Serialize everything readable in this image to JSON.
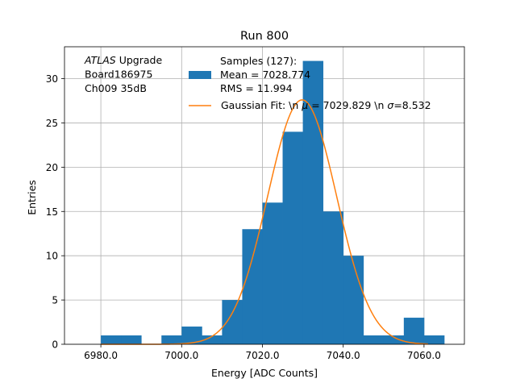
{
  "chart_data": {
    "type": "bar",
    "title": "Run 800",
    "xlabel": "Energy [ADC Counts]",
    "ylabel": "Entries",
    "xlim": [
      6971,
      7070
    ],
    "ylim": [
      0,
      33.6
    ],
    "grid": true,
    "x_ticks": [
      6980,
      7000,
      7020,
      7040,
      7060
    ],
    "x_tick_labels": [
      "6980.0",
      "7000.0",
      "7020.0",
      "7040.0",
      "7060.0"
    ],
    "y_ticks": [
      0,
      5,
      10,
      15,
      20,
      25,
      30
    ],
    "y_tick_labels": [
      "0",
      "5",
      "10",
      "15",
      "20",
      "25",
      "30"
    ],
    "histogram": {
      "name": "Samples (127):\n Mean = 7028.774\n RMS = 11.994",
      "color": "#1f77b4",
      "bin_edges": [
        6980,
        6985,
        6990,
        6995,
        7000,
        7005,
        7010,
        7015,
        7020,
        7025,
        7030,
        7035,
        7040,
        7045,
        7050,
        7055,
        7060,
        7065
      ],
      "counts": [
        1,
        1,
        0,
        1,
        2,
        1,
        5,
        13,
        16,
        24,
        32,
        15,
        10,
        1,
        1,
        3,
        1
      ]
    },
    "gaussian_fit": {
      "name": "Gaussian Fit: \\n $\\mu$ = 7029.829 \\n $\\sigma$=8.532",
      "color": "#ff7f0e",
      "mu": 7029.829,
      "sigma": 8.532,
      "amplitude": 27.6,
      "x_range": [
        6980,
        7061
      ]
    },
    "legend": {
      "placement": "top-right",
      "entries": [
        {
          "kind": "patch",
          "lines": [
            "Samples (127):",
            " Mean = 7028.774",
            " RMS = 11.994"
          ]
        },
        {
          "kind": "line",
          "parts": [
            "Gaussian Fit: \\n ",
            "μ",
            " = 7029.829 \\n ",
            "σ",
            "=8.532"
          ]
        }
      ]
    },
    "annotation": {
      "lines": [
        {
          "italic": "ATLAS",
          "rest": " Upgrade"
        },
        {
          "italic": "",
          "rest": " Board186975"
        },
        {
          "italic": "",
          "rest": " Ch009 35dB"
        }
      ]
    }
  }
}
